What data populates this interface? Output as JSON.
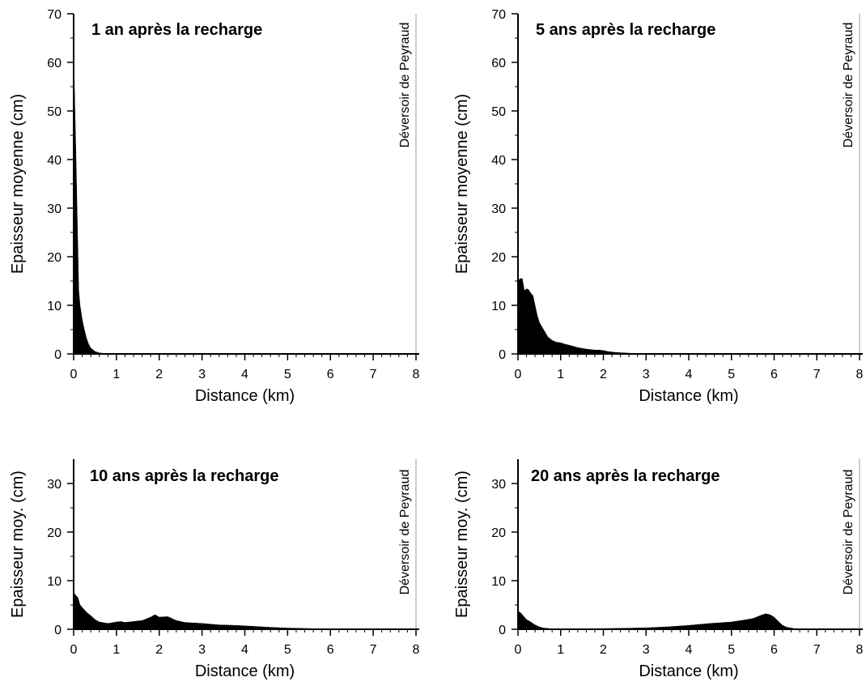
{
  "figure": {
    "marker_label": "Déversoir de Peyraud",
    "fill_color": "#000000",
    "marker_color": "#999999"
  },
  "chart_data": [
    {
      "type": "area",
      "title": "1 an après la recharge",
      "xlabel": "Distance (km)",
      "ylabel": "Epaisseur moyenne (cm)",
      "xlim": [
        0,
        8
      ],
      "ylim": [
        0,
        70
      ],
      "xticks": [
        0,
        1,
        2,
        3,
        4,
        5,
        6,
        7,
        8
      ],
      "yticks": [
        0,
        10,
        20,
        30,
        40,
        50,
        60,
        70
      ],
      "marker_x": 8,
      "x": [
        0,
        0.03,
        0.06,
        0.09,
        0.12,
        0.15,
        0.2,
        0.25,
        0.3,
        0.35,
        0.4,
        0.5,
        0.6,
        0.8,
        1,
        2,
        4,
        6,
        8
      ],
      "y": [
        62,
        50,
        38,
        25,
        13,
        10,
        7,
        5,
        3.2,
        2,
        1.2,
        0.5,
        0.2,
        0.05,
        0,
        0,
        0,
        0,
        0
      ]
    },
    {
      "type": "area",
      "title": "5 ans après la recharge",
      "xlabel": "Distance (km)",
      "ylabel": "Epaisseur moyenne (cm)",
      "xlim": [
        0,
        8
      ],
      "ylim": [
        0,
        70
      ],
      "xticks": [
        0,
        1,
        2,
        3,
        4,
        5,
        6,
        7,
        8
      ],
      "yticks": [
        0,
        10,
        20,
        30,
        40,
        50,
        60,
        70
      ],
      "marker_x": 8,
      "x": [
        0,
        0.05,
        0.1,
        0.15,
        0.2,
        0.25,
        0.3,
        0.35,
        0.4,
        0.45,
        0.5,
        0.6,
        0.7,
        0.8,
        0.9,
        1.0,
        1.1,
        1.2,
        1.4,
        1.6,
        1.8,
        1.9,
        2.0,
        2.1,
        2.3,
        2.6,
        3,
        4,
        5,
        6,
        8
      ],
      "y": [
        15,
        15.5,
        15.5,
        13,
        13.4,
        13.2,
        12.5,
        12,
        10,
        8,
        6.5,
        5,
        3.5,
        2.8,
        2.4,
        2.3,
        2.0,
        1.8,
        1.3,
        1.0,
        0.8,
        0.8,
        0.7,
        0.5,
        0.3,
        0.15,
        0.05,
        0,
        0,
        0,
        0
      ]
    },
    {
      "type": "area",
      "title": "10 ans après la recharge",
      "xlabel": "Distance (km)",
      "ylabel": "Epaisseur moy. (cm)",
      "xlim": [
        0,
        8
      ],
      "ylim": [
        0,
        35
      ],
      "xticks": [
        0,
        1,
        2,
        3,
        4,
        5,
        6,
        7,
        8
      ],
      "yticks": [
        0,
        10,
        20,
        30
      ],
      "marker_x": 8,
      "x": [
        0,
        0.05,
        0.1,
        0.15,
        0.2,
        0.3,
        0.4,
        0.5,
        0.6,
        0.8,
        1.0,
        1.1,
        1.2,
        1.4,
        1.6,
        1.8,
        1.9,
        2.0,
        2.2,
        2.4,
        2.6,
        3.0,
        3.4,
        3.8,
        4.2,
        4.6,
        5.0,
        5.5,
        6,
        7,
        8
      ],
      "y": [
        7.5,
        7,
        6.5,
        5,
        4.5,
        3.5,
        2.8,
        2.0,
        1.5,
        1.2,
        1.5,
        1.6,
        1.4,
        1.6,
        1.8,
        2.5,
        3.0,
        2.5,
        2.6,
        1.8,
        1.4,
        1.2,
        0.9,
        0.8,
        0.6,
        0.4,
        0.25,
        0.15,
        0.05,
        0.02,
        0
      ]
    },
    {
      "type": "area",
      "title": "20 ans après la recharge",
      "xlabel": "Distance (km)",
      "ylabel": "Epaisseur moy. (cm)",
      "xlim": [
        0,
        8
      ],
      "ylim": [
        0,
        35
      ],
      "xticks": [
        0,
        1,
        2,
        3,
        4,
        5,
        6,
        7,
        8
      ],
      "yticks": [
        0,
        10,
        20,
        30
      ],
      "marker_x": 8,
      "x": [
        0,
        0.05,
        0.1,
        0.2,
        0.3,
        0.4,
        0.5,
        0.6,
        0.8,
        1.0,
        1.5,
        2.0,
        2.5,
        3.0,
        3.5,
        4.0,
        4.5,
        5.0,
        5.3,
        5.5,
        5.7,
        5.8,
        5.9,
        6.0,
        6.1,
        6.2,
        6.3,
        6.5,
        7,
        8
      ],
      "y": [
        3.7,
        3.5,
        3.0,
        2.0,
        1.5,
        0.9,
        0.5,
        0.25,
        0.1,
        0.05,
        0.1,
        0.15,
        0.2,
        0.3,
        0.5,
        0.8,
        1.2,
        1.5,
        1.9,
        2.2,
        2.9,
        3.2,
        3.0,
        2.5,
        1.6,
        0.8,
        0.4,
        0.1,
        0.02,
        0
      ]
    }
  ]
}
